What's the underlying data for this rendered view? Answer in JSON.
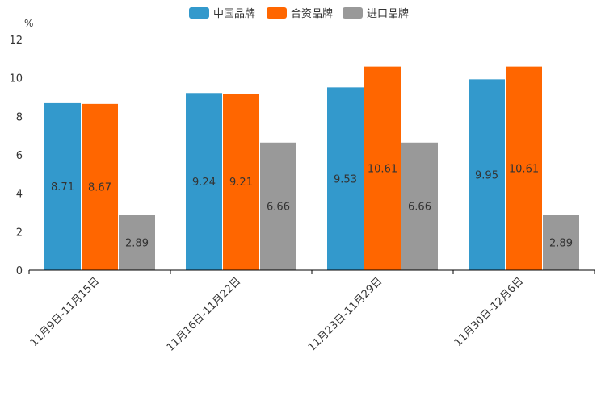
{
  "chart_data": {
    "type": "bar",
    "unit": "%",
    "categories": [
      "11月9日-11月15日",
      "11月16日-11月22日",
      "11月23日-11月29日",
      "11月30日-12月6日"
    ],
    "series": [
      {
        "name": "中国品牌",
        "color": "#3399CC",
        "values": [
          8.71,
          9.24,
          9.53,
          9.95
        ]
      },
      {
        "name": "合资品牌",
        "color": "#FF6600",
        "values": [
          8.67,
          9.21,
          10.61,
          10.61
        ]
      },
      {
        "name": "进口品牌",
        "color": "#999999",
        "values": [
          2.89,
          6.66,
          6.66,
          2.89
        ]
      }
    ],
    "ylim": [
      0,
      12
    ],
    "yticks": [
      "0",
      "2",
      "4",
      "6",
      "8",
      "10",
      "12"
    ],
    "legend_position": "top-center",
    "grid": false
  }
}
